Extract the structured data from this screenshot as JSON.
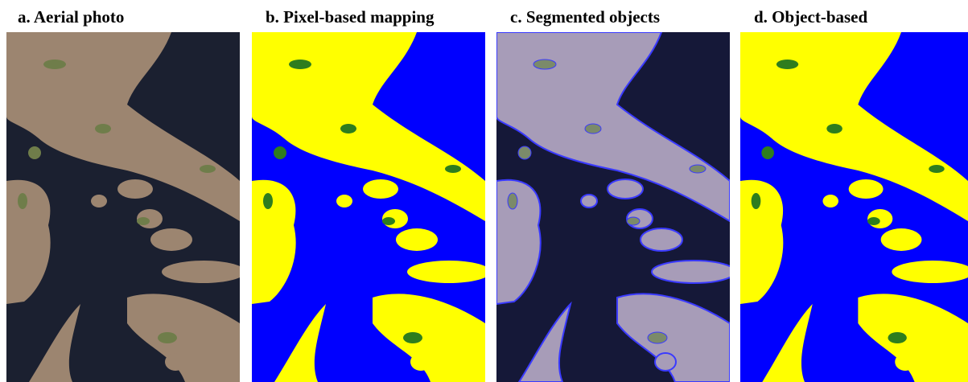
{
  "panels": [
    {
      "label": "a. Aerial photo"
    },
    {
      "label": "b. Pixel-based mapping"
    },
    {
      "label": "c. Segmented objects"
    },
    {
      "label": "d. Object-based"
    }
  ]
}
